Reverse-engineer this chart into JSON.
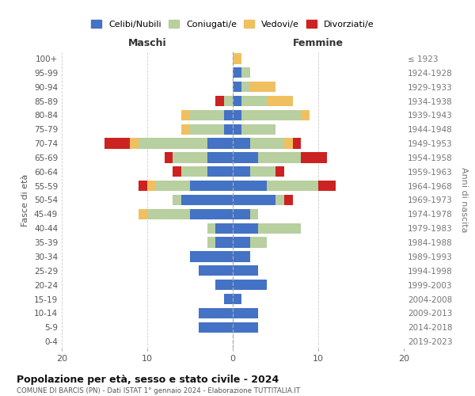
{
  "age_groups": [
    "0-4",
    "5-9",
    "10-14",
    "15-19",
    "20-24",
    "25-29",
    "30-34",
    "35-39",
    "40-44",
    "45-49",
    "50-54",
    "55-59",
    "60-64",
    "65-69",
    "70-74",
    "75-79",
    "80-84",
    "85-89",
    "90-94",
    "95-99",
    "100+"
  ],
  "birth_years": [
    "2019-2023",
    "2014-2018",
    "2009-2013",
    "2004-2008",
    "1999-2003",
    "1994-1998",
    "1989-1993",
    "1984-1988",
    "1979-1983",
    "1974-1978",
    "1969-1973",
    "1964-1968",
    "1959-1963",
    "1954-1958",
    "1949-1953",
    "1944-1948",
    "1939-1943",
    "1934-1938",
    "1929-1933",
    "1924-1928",
    "≤ 1923"
  ],
  "colors": {
    "celibi": "#4472c4",
    "coniugati": "#b8cfa0",
    "vedovi": "#f0c060",
    "divorziati": "#cc2222"
  },
  "maschi": {
    "celibi": [
      0,
      4,
      4,
      1,
      2,
      4,
      5,
      2,
      2,
      5,
      6,
      5,
      3,
      3,
      3,
      1,
      1,
      0,
      0,
      0,
      0
    ],
    "coniugati": [
      0,
      0,
      0,
      0,
      0,
      0,
      0,
      1,
      1,
      5,
      1,
      4,
      3,
      4,
      8,
      4,
      4,
      1,
      0,
      0,
      0
    ],
    "vedovi": [
      0,
      0,
      0,
      0,
      0,
      0,
      0,
      0,
      0,
      1,
      0,
      1,
      0,
      0,
      1,
      1,
      1,
      0,
      0,
      0,
      0
    ],
    "divorziati": [
      0,
      0,
      0,
      0,
      0,
      0,
      0,
      0,
      0,
      0,
      0,
      1,
      1,
      1,
      3,
      0,
      0,
      1,
      0,
      0,
      0
    ]
  },
  "femmine": {
    "celibi": [
      0,
      3,
      3,
      1,
      4,
      3,
      2,
      2,
      3,
      2,
      5,
      4,
      2,
      3,
      2,
      1,
      1,
      1,
      1,
      1,
      0
    ],
    "coniugati": [
      0,
      0,
      0,
      0,
      0,
      0,
      0,
      2,
      5,
      1,
      1,
      6,
      3,
      5,
      4,
      4,
      7,
      3,
      1,
      1,
      0
    ],
    "vedovi": [
      0,
      0,
      0,
      0,
      0,
      0,
      0,
      0,
      0,
      0,
      0,
      0,
      0,
      0,
      1,
      0,
      1,
      3,
      3,
      0,
      1
    ],
    "divorziati": [
      0,
      0,
      0,
      0,
      0,
      0,
      0,
      0,
      0,
      0,
      1,
      2,
      1,
      3,
      1,
      0,
      0,
      0,
      0,
      0,
      0
    ]
  },
  "xlim": 20,
  "title": "Popolazione per età, sesso e stato civile - 2024",
  "subtitle": "COMUNE DI BARCIS (PN) - Dati ISTAT 1° gennaio 2024 - Elaborazione TUTTITALIA.IT",
  "xlabel_left": "Maschi",
  "xlabel_right": "Femmine",
  "ylabel_left": "Fasce di età",
  "ylabel_right": "Anni di nascita",
  "legend_labels": [
    "Celibi/Nubili",
    "Coniugati/e",
    "Vedovi/e",
    "Divorziati/e"
  ],
  "bg_color": "#ffffff",
  "grid_color": "#c8c8c8"
}
